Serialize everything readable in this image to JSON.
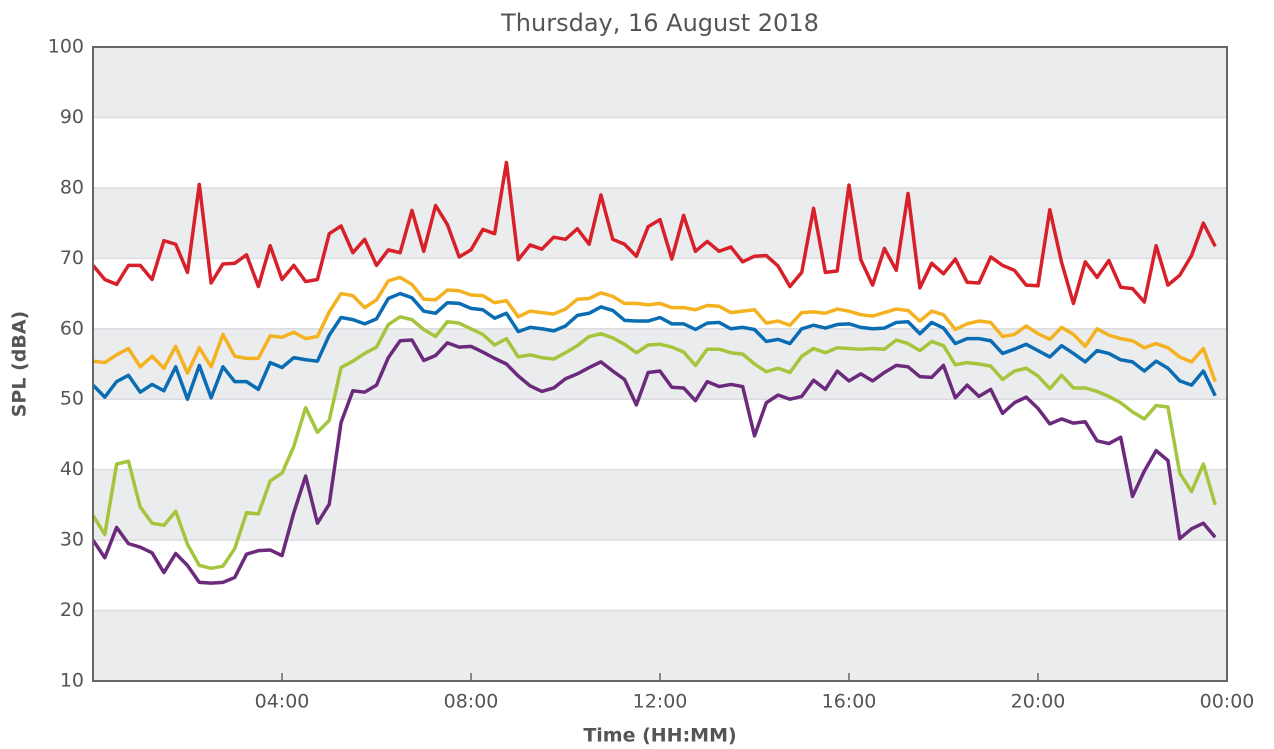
{
  "chart_data": {
    "type": "line",
    "title": "Thursday, 16 August 2018",
    "xlabel": "Time (HH:MM)",
    "ylabel": "SPL (dBA)",
    "xlim": [
      0,
      24
    ],
    "xticks": [
      {
        "value": 4,
        "label": "04:00"
      },
      {
        "value": 8,
        "label": "08:00"
      },
      {
        "value": 12,
        "label": "12:00"
      },
      {
        "value": 16,
        "label": "16:00"
      },
      {
        "value": 20,
        "label": "20:00"
      },
      {
        "value": 24,
        "label": "00:00"
      }
    ],
    "ylim": [
      10,
      100
    ],
    "yticks": [
      10,
      20,
      30,
      40,
      50,
      60,
      70,
      80,
      90,
      100
    ],
    "grid": true,
    "x": [
      0,
      0.25,
      0.5,
      0.75,
      1,
      1.25,
      1.5,
      1.75,
      2,
      2.25,
      2.5,
      2.75,
      3,
      3.25,
      3.5,
      3.75,
      4,
      4.25,
      4.5,
      4.75,
      5,
      5.25,
      5.5,
      5.75,
      6,
      6.25,
      6.5,
      6.75,
      7,
      7.25,
      7.5,
      7.75,
      8,
      8.25,
      8.5,
      8.75,
      9,
      9.25,
      9.5,
      9.75,
      10,
      10.25,
      10.5,
      10.75,
      11,
      11.25,
      11.5,
      11.75,
      12,
      12.25,
      12.5,
      12.75,
      13,
      13.25,
      13.5,
      13.75,
      14,
      14.25,
      14.5,
      14.75,
      15,
      15.25,
      15.5,
      15.75,
      16,
      16.25,
      16.5,
      16.75,
      17,
      17.25,
      17.5,
      17.75,
      18,
      18.25,
      18.5,
      18.75,
      19,
      19.25,
      19.5,
      19.75,
      20,
      20.25,
      20.5,
      20.75,
      21,
      21.25,
      21.5,
      21.75,
      22,
      22.25,
      22.5,
      22.75,
      23,
      23.25,
      23.5,
      23.75
    ],
    "series": [
      {
        "color": "#d7202a",
        "values": [
          69,
          67,
          66.3,
          69,
          69,
          67,
          72.5,
          72,
          68,
          80.5,
          66.5,
          69.2,
          69.3,
          70.5,
          66,
          71.8,
          67,
          69,
          66.7,
          67,
          73.5,
          74.6,
          70.8,
          72.7,
          69,
          71.2,
          70.8,
          76.8,
          71,
          77.5,
          74.8,
          70.2,
          71.2,
          74.1,
          73.5,
          83.6,
          69.8,
          71.9,
          71.3,
          73,
          72.7,
          74.2,
          72,
          79,
          72.7,
          72,
          70.3,
          74.5,
          75.5,
          69.9,
          76.1,
          71,
          72.4,
          71,
          71.6,
          69.5,
          70.3,
          70.4,
          68.9,
          66,
          68,
          77.1,
          68,
          68.2,
          80.4,
          69.8,
          66.2,
          71.4,
          68.3,
          79.2,
          65.8,
          69.3,
          67.8,
          69.9,
          66.6,
          66.5,
          70.2,
          69,
          68.3,
          66.2,
          66.1,
          76.9,
          69.4,
          63.6,
          69.5,
          67.3,
          69.7,
          65.9,
          65.7,
          63.8,
          71.8,
          66.2,
          67.6,
          70.4,
          75,
          71.7
        ]
      },
      {
        "color": "#f4b120",
        "values": [
          55.4,
          55.2,
          56.3,
          57.2,
          54.6,
          56.1,
          54.4,
          57.5,
          53.7,
          57.3,
          54.6,
          59.2,
          56.1,
          55.8,
          55.8,
          59,
          58.8,
          59.5,
          58.6,
          58.9,
          62.4,
          65,
          64.7,
          63,
          64.1,
          66.8,
          67.3,
          66.3,
          64.2,
          64.1,
          65.5,
          65.4,
          64.8,
          64.7,
          63.7,
          64,
          61.7,
          62.5,
          62.3,
          62.1,
          62.8,
          64.2,
          64.3,
          65.1,
          64.6,
          63.6,
          63.6,
          63.4,
          63.6,
          63,
          63,
          62.7,
          63.3,
          63.2,
          62.3,
          62.5,
          62.7,
          60.8,
          61.1,
          60.5,
          62.3,
          62.4,
          62.2,
          62.8,
          62.5,
          62,
          61.8,
          62.3,
          62.8,
          62.6,
          61.1,
          62.5,
          62,
          59.9,
          60.7,
          61.1,
          60.9,
          58.9,
          59.2,
          60.4,
          59.3,
          58.5,
          60.2,
          59.2,
          57.5,
          60,
          59.1,
          58.6,
          58.3,
          57.3,
          57.9,
          57.3,
          56,
          55.3,
          57.2,
          52.5
        ]
      },
      {
        "color": "#0a6db3",
        "values": [
          52,
          50.3,
          52.5,
          53.4,
          51,
          52.1,
          51.2,
          54.6,
          50,
          54.8,
          50.2,
          54.6,
          52.5,
          52.5,
          51.4,
          55.2,
          54.5,
          55.9,
          55.6,
          55.4,
          59.1,
          61.6,
          61.3,
          60.7,
          61.4,
          64.3,
          65,
          64.4,
          62.5,
          62.2,
          63.7,
          63.6,
          62.9,
          62.7,
          61.5,
          62.2,
          59.6,
          60.2,
          60,
          59.7,
          60.4,
          61.9,
          62.2,
          63.1,
          62.6,
          61.2,
          61.1,
          61.1,
          61.6,
          60.7,
          60.7,
          59.9,
          60.8,
          60.9,
          60,
          60.2,
          59.9,
          58.2,
          58.5,
          57.9,
          60,
          60.5,
          60.1,
          60.6,
          60.7,
          60.2,
          60,
          60.1,
          60.9,
          61,
          59.3,
          60.9,
          60.1,
          57.9,
          58.6,
          58.6,
          58.3,
          56.5,
          57.1,
          57.8,
          56.9,
          56,
          57.6,
          56.5,
          55.3,
          56.9,
          56.5,
          55.6,
          55.3,
          54,
          55.4,
          54.4,
          52.6,
          52,
          54,
          50.5
        ]
      },
      {
        "color": "#a4c53c",
        "values": [
          33.5,
          30.8,
          40.8,
          41.2,
          34.7,
          32.4,
          32.1,
          34.1,
          29.4,
          26.4,
          26,
          26.3,
          28.8,
          33.9,
          33.7,
          38.4,
          39.5,
          43.3,
          48.8,
          45.3,
          47,
          54.5,
          55.4,
          56.5,
          57.4,
          60.6,
          61.7,
          61.3,
          59.9,
          58.9,
          61,
          60.8,
          60,
          59.2,
          57.7,
          58.6,
          56,
          56.3,
          55.9,
          55.7,
          56.6,
          57.6,
          58.9,
          59.3,
          58.7,
          57.8,
          56.6,
          57.7,
          57.8,
          57.4,
          56.7,
          54.8,
          57.1,
          57.1,
          56.6,
          56.4,
          55,
          53.9,
          54.4,
          53.8,
          56.1,
          57.2,
          56.6,
          57.3,
          57.2,
          57.1,
          57.2,
          57.1,
          58.4,
          57.9,
          56.9,
          58.2,
          57.6,
          54.9,
          55.2,
          55,
          54.7,
          52.8,
          54,
          54.4,
          53.3,
          51.5,
          53.4,
          51.6,
          51.6,
          51.1,
          50.4,
          49.5,
          48.2,
          47.2,
          49.1,
          48.9,
          39.5,
          36.9,
          40.8,
          35
        ]
      },
      {
        "color": "#6c2a7d",
        "values": [
          30,
          27.5,
          31.8,
          29.5,
          29,
          28.2,
          25.4,
          28.1,
          26.4,
          24,
          23.9,
          24,
          24.7,
          28,
          28.5,
          28.6,
          27.8,
          33.9,
          39.1,
          32.4,
          35.1,
          46.7,
          51.2,
          51,
          52,
          55.9,
          58.3,
          58.4,
          55.5,
          56.2,
          58,
          57.4,
          57.5,
          56.7,
          55.8,
          55,
          53.3,
          51.9,
          51.1,
          51.6,
          52.9,
          53.6,
          54.5,
          55.3,
          54,
          52.8,
          49.2,
          53.8,
          54,
          51.7,
          51.6,
          49.8,
          52.5,
          51.8,
          52.1,
          51.8,
          44.8,
          49.5,
          50.6,
          50,
          50.4,
          52.7,
          51.4,
          54,
          52.6,
          53.6,
          52.6,
          53.8,
          54.8,
          54.6,
          53.2,
          53.1,
          54.8,
          50.2,
          52,
          50.4,
          51.4,
          48,
          49.5,
          50.3,
          48.7,
          46.5,
          47.2,
          46.6,
          46.8,
          44.1,
          43.7,
          44.6,
          36.2,
          39.8,
          42.7,
          41.3,
          30.2,
          31.6,
          32.4,
          30.4
        ]
      }
    ]
  }
}
